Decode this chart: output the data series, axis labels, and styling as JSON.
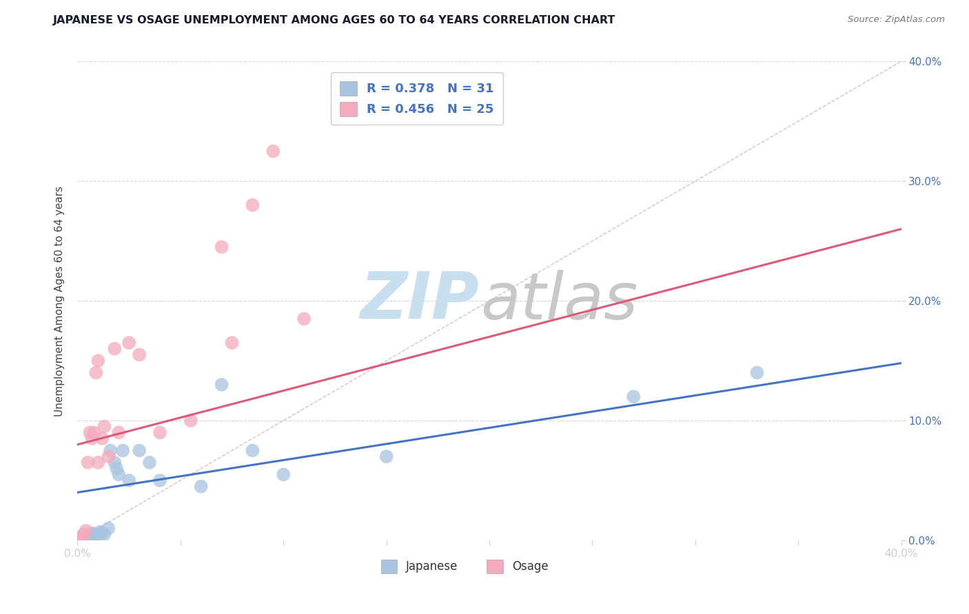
{
  "title": "JAPANESE VS OSAGE UNEMPLOYMENT AMONG AGES 60 TO 64 YEARS CORRELATION CHART",
  "source": "Source: ZipAtlas.com",
  "ylabel": "Unemployment Among Ages 60 to 64 years",
  "xlim": [
    0.0,
    0.4
  ],
  "ylim": [
    0.0,
    0.4
  ],
  "legend_R_japanese": "0.378",
  "legend_N_japanese": "31",
  "legend_R_osage": "0.456",
  "legend_N_osage": "25",
  "japanese_color": "#a8c4e0",
  "osage_color": "#f4aabc",
  "japanese_line_color": "#4472c4",
  "osage_line_color": "#e05878",
  "diagonal_color": "#c8c8c8",
  "watermark_zip_color": "#c8dff0",
  "watermark_atlas_color": "#c8c8c8",
  "japanese_x": [
    0.0,
    0.002,
    0.003,
    0.004,
    0.005,
    0.005,
    0.006,
    0.007,
    0.008,
    0.009,
    0.01,
    0.011,
    0.012,
    0.013,
    0.015,
    0.016,
    0.018,
    0.019,
    0.02,
    0.022,
    0.025,
    0.03,
    0.035,
    0.04,
    0.06,
    0.07,
    0.085,
    0.1,
    0.15,
    0.27,
    0.33
  ],
  "japanese_y": [
    0.002,
    0.002,
    0.003,
    0.003,
    0.002,
    0.004,
    0.003,
    0.006,
    0.005,
    0.004,
    0.005,
    0.007,
    0.006,
    0.005,
    0.01,
    0.075,
    0.065,
    0.06,
    0.055,
    0.075,
    0.05,
    0.075,
    0.065,
    0.05,
    0.045,
    0.13,
    0.075,
    0.055,
    0.07,
    0.12,
    0.14
  ],
  "osage_x": [
    0.0,
    0.002,
    0.003,
    0.004,
    0.005,
    0.006,
    0.007,
    0.008,
    0.009,
    0.01,
    0.01,
    0.012,
    0.013,
    0.015,
    0.018,
    0.02,
    0.025,
    0.03,
    0.04,
    0.055,
    0.07,
    0.075,
    0.085,
    0.095,
    0.11
  ],
  "osage_y": [
    0.002,
    0.003,
    0.005,
    0.008,
    0.065,
    0.09,
    0.085,
    0.09,
    0.14,
    0.15,
    0.065,
    0.085,
    0.095,
    0.07,
    0.16,
    0.09,
    0.165,
    0.155,
    0.09,
    0.1,
    0.245,
    0.165,
    0.28,
    0.325,
    0.185
  ],
  "jap_line_x0": 0.0,
  "jap_line_y0": 0.04,
  "jap_line_x1": 0.4,
  "jap_line_y1": 0.148,
  "osa_line_x0": 0.0,
  "osa_line_y0": 0.08,
  "osa_line_x1": 0.4,
  "osa_line_y1": 0.26
}
